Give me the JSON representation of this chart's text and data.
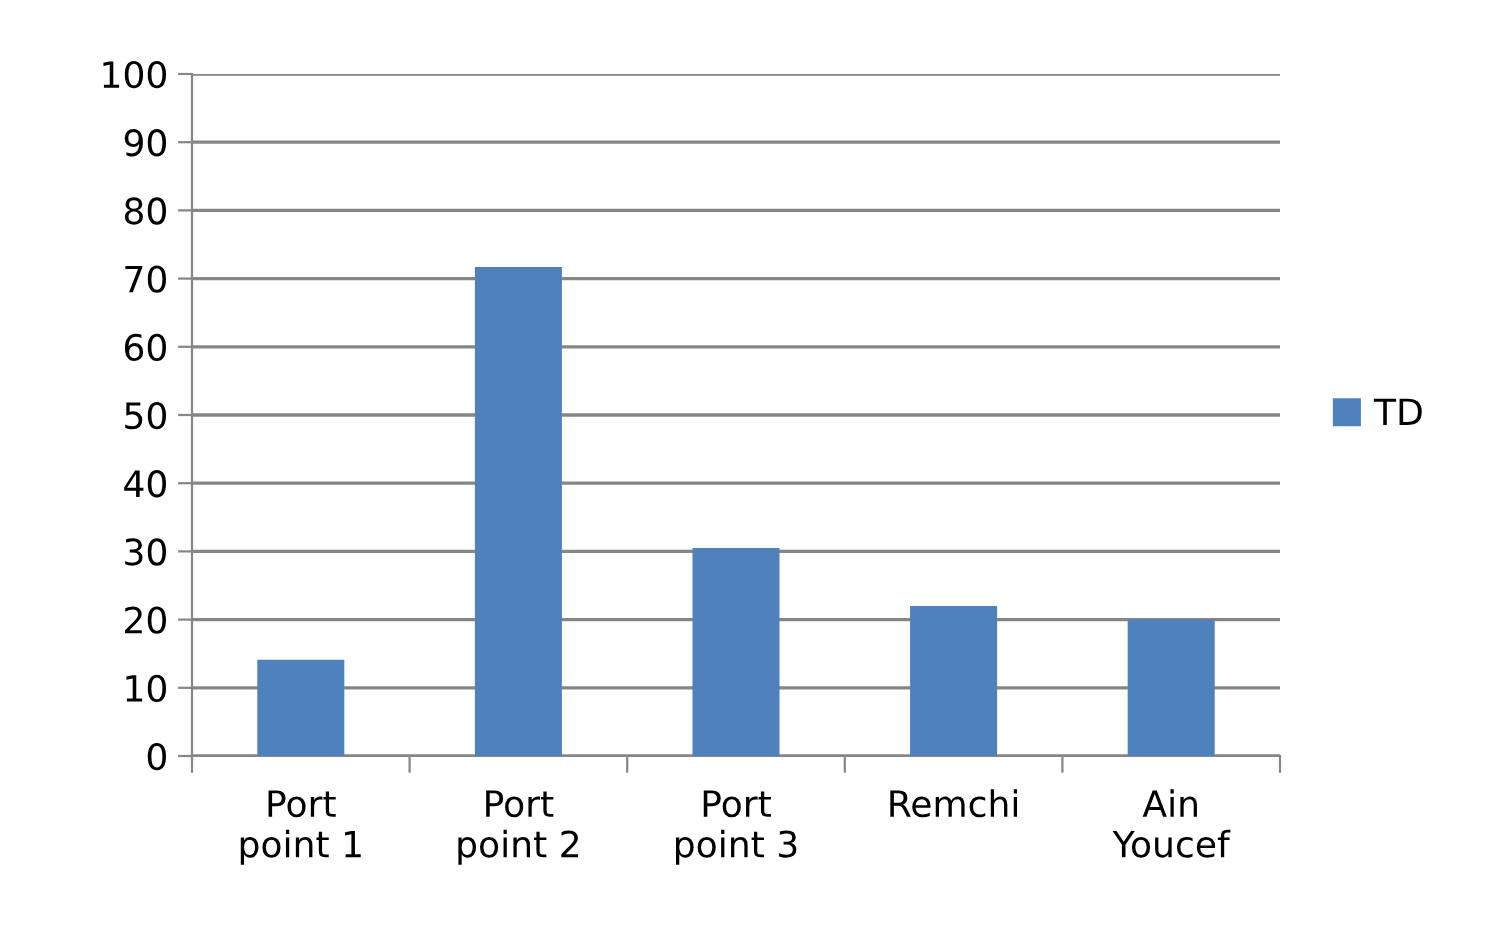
{
  "chart_data": {
    "type": "bar",
    "categories": [
      "Port\npoint 1",
      "Port\npoint 2",
      "Port\npoint 3",
      "Remchi",
      "Ain\nYoucef"
    ],
    "series": [
      {
        "name": "TD",
        "color": "#4f81bd",
        "values": [
          14.1,
          71.7,
          30.5,
          22.0,
          20.0
        ]
      }
    ],
    "ylim": [
      0,
      100
    ],
    "yticks": [
      0,
      10,
      20,
      30,
      40,
      50,
      60,
      70,
      80,
      90,
      100
    ],
    "grid": "y",
    "legend": "right"
  }
}
